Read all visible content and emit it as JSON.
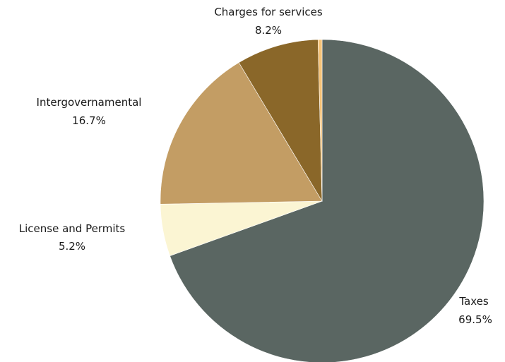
{
  "chart_data": {
    "type": "pie",
    "start_angle_deg": 0,
    "direction": "clockwise",
    "slices": [
      {
        "label": "Taxes",
        "value": 69.5,
        "value_label": "69.5%",
        "color": "#5a6662"
      },
      {
        "label": "License and Permits",
        "value": 5.2,
        "value_label": "5.2%",
        "color": "#fbf5d3"
      },
      {
        "label": "Intergovernamental",
        "value": 16.7,
        "value_label": "16.7%",
        "color": "#c39d64"
      },
      {
        "label": "Charges for services",
        "value": 8.2,
        "value_label": "8.2%",
        "color": "#8a6729"
      },
      {
        "label": "",
        "value": 0.4,
        "value_label": "",
        "color": "#f5c277"
      }
    ]
  }
}
